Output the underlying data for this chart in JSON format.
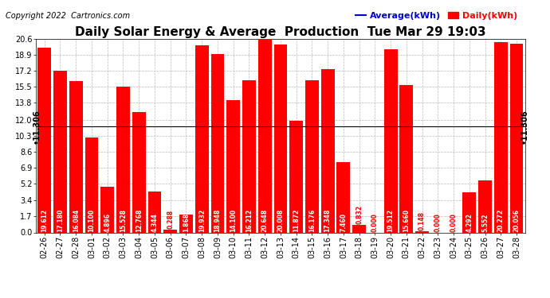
{
  "title": "Daily Solar Energy & Average  Production  Tue Mar 29 19:03",
  "copyright": "Copyright 2022  Cartronics.com",
  "legend_avg": "Average(kWh)",
  "legend_daily": "Daily(kWh)",
  "average_value": 11.306,
  "categories": [
    "02-26",
    "02-27",
    "02-28",
    "03-01",
    "03-02",
    "03-03",
    "03-04",
    "03-05",
    "03-06",
    "03-07",
    "03-08",
    "03-09",
    "03-10",
    "03-11",
    "03-12",
    "03-13",
    "03-14",
    "03-15",
    "03-16",
    "03-17",
    "03-18",
    "03-19",
    "03-20",
    "03-21",
    "03-22",
    "03-23",
    "03-24",
    "03-25",
    "03-26",
    "03-27",
    "03-28"
  ],
  "values": [
    19.612,
    17.18,
    16.084,
    10.1,
    4.896,
    15.528,
    12.768,
    4.344,
    0.288,
    1.868,
    19.932,
    18.948,
    14.1,
    16.212,
    20.648,
    20.008,
    11.872,
    16.176,
    17.348,
    7.46,
    0.832,
    0.0,
    19.512,
    15.66,
    0.148,
    0.0,
    0.0,
    4.292,
    5.552,
    20.272,
    20.056
  ],
  "bar_color": "#FF0000",
  "avg_line_color": "#0000CD",
  "avg_label_color": "#0000CD",
  "daily_label_color": "#FF0000",
  "avg_text_color": "#000000",
  "background_color": "#FFFFFF",
  "grid_color": "#BBBBBB",
  "yticks": [
    0.0,
    1.7,
    3.4,
    5.2,
    6.9,
    8.6,
    10.3,
    12.0,
    13.8,
    15.5,
    17.2,
    18.9,
    20.6
  ],
  "ylim": [
    0.0,
    20.6
  ],
  "title_fontsize": 11,
  "copyright_fontsize": 7,
  "bar_label_fontsize": 5.5,
  "tick_fontsize": 7,
  "avg_fontsize": 7,
  "legend_fontsize": 8
}
